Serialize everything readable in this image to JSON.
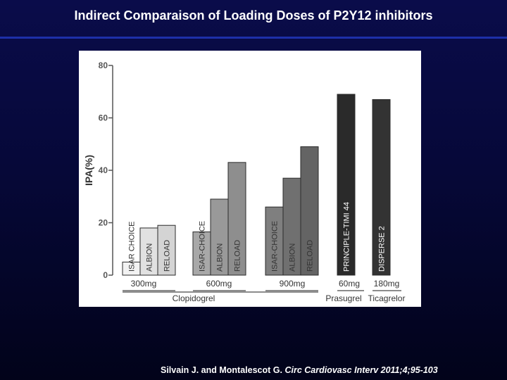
{
  "slide": {
    "title": "Indirect Comparaison of Loading Doses of P2Y12 inhibitors",
    "citation_authors": "Silvain J. and Montalescot G.",
    "citation_journal": "Circ Cardiovasc Interv 2011;4;95-103"
  },
  "chart_data": {
    "type": "bar",
    "title": "",
    "xlabel": "",
    "ylabel": "IPA(%)",
    "ylim": [
      0,
      80
    ],
    "yticks": [
      0,
      20,
      40,
      60,
      80
    ],
    "grid": false,
    "bars": [
      {
        "label": "ISAR CHOICE",
        "group": "300mg",
        "drug": "Clopidogrel",
        "value": 5,
        "color": "#f2f2f2"
      },
      {
        "label": "ALBION",
        "group": "300mg",
        "drug": "Clopidogrel",
        "value": 18,
        "color": "#e1e1e1"
      },
      {
        "label": "RELOAD",
        "group": "300mg",
        "drug": "Clopidogrel",
        "value": 19,
        "color": "#d4d4d4"
      },
      {
        "label": "ISAR-CHOICE",
        "group": "600mg",
        "drug": "Clopidogrel",
        "value": 16.5,
        "color": "#a8a8a8"
      },
      {
        "label": "ALBION",
        "group": "600mg",
        "drug": "Clopidogrel",
        "value": 29,
        "color": "#999999"
      },
      {
        "label": "RELOAD",
        "group": "600mg",
        "drug": "Clopidogrel",
        "value": 43,
        "color": "#8e8e8e"
      },
      {
        "label": "ISAR-CHOICE",
        "group": "900mg",
        "drug": "Clopidogrel",
        "value": 26,
        "color": "#7f7f7f"
      },
      {
        "label": "ALBION",
        "group": "900mg",
        "drug": "Clopidogrel",
        "value": 37,
        "color": "#707070"
      },
      {
        "label": "RELOAD",
        "group": "900mg",
        "drug": "Clopidogrel",
        "value": 49,
        "color": "#646464"
      },
      {
        "label": "PRINCIPLE-TIMI 44",
        "group": "60mg",
        "drug": "Prasugrel",
        "value": 69,
        "color": "#2a2a2a"
      },
      {
        "label": "DISPERSE 2",
        "group": "180mg",
        "drug": "Ticagrelor",
        "value": 67,
        "color": "#333333"
      }
    ],
    "dose_labels": [
      "300mg",
      "600mg",
      "900mg",
      "60mg",
      "180mg"
    ],
    "drug_labels": [
      "Clopidogrel",
      "Prasugrel",
      "Ticagrelor"
    ]
  }
}
